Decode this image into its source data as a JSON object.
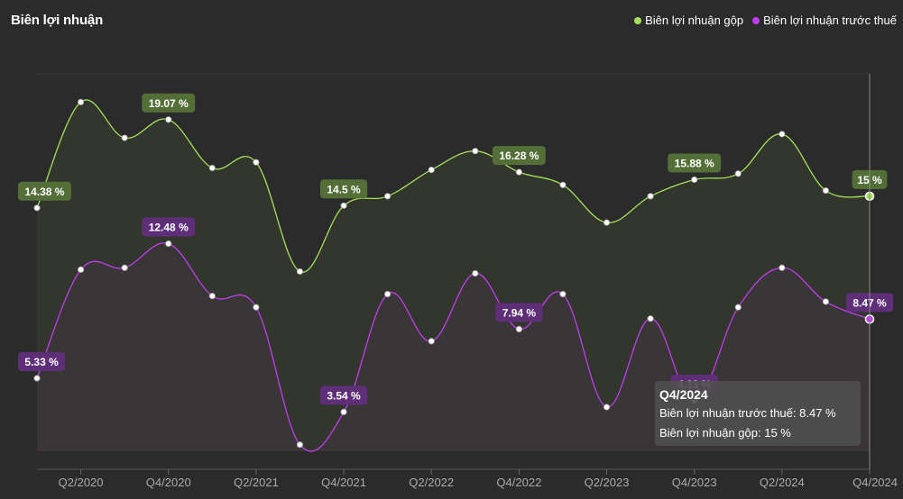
{
  "title": "Biên lợi nhuận",
  "legend": [
    {
      "name": "Biên lợi nhuận gộp",
      "color": "#a3e05a"
    },
    {
      "name": "Biên lợi nhuận trước thuế",
      "color": "#c03cf0"
    }
  ],
  "tooltip": {
    "title": "Q4/2024",
    "row1_label": "Biên lợi nhuận trước thuế: ",
    "row1_value": "8.47 %",
    "row2_label": "Biên lợi nhuận gộp: ",
    "row2_value": "15 %"
  },
  "chart_data": {
    "type": "line",
    "categories": [
      "Q1/2020",
      "Q2/2020",
      "Q3/2020",
      "Q4/2020",
      "Q1/2021",
      "Q2/2021",
      "Q3/2021",
      "Q4/2021",
      "Q1/2022",
      "Q2/2022",
      "Q3/2022",
      "Q4/2022",
      "Q1/2023",
      "Q2/2023",
      "Q3/2023",
      "Q4/2023",
      "Q1/2024",
      "Q2/2024",
      "Q3/2024",
      "Q4/2024"
    ],
    "tick_labels": [
      "Q2/2020",
      "Q4/2020",
      "Q2/2021",
      "Q4/2021",
      "Q2/2022",
      "Q4/2022",
      "Q2/2023",
      "Q4/2023",
      "Q2/2024",
      "Q4/2024"
    ],
    "tick_indices": [
      1,
      3,
      5,
      7,
      9,
      11,
      13,
      15,
      17,
      19
    ],
    "ylim": [
      1.5,
      21.5
    ],
    "series": [
      {
        "name": "Biên lợi nhuận gộp",
        "color": "#a3e05a",
        "label_bg": "#536e37",
        "values": [
          14.38,
          20.0,
          18.1,
          19.07,
          16.5,
          16.8,
          11.0,
          14.5,
          15.0,
          16.4,
          17.4,
          16.28,
          15.6,
          13.6,
          15.0,
          15.88,
          16.2,
          18.3,
          15.3,
          15.0
        ],
        "labels": {
          "0": "14.38 %",
          "3": "19.07 %",
          "7": "14.5 %",
          "11": "16.28 %",
          "15": "15.88 %",
          "19": "15 %"
        }
      },
      {
        "name": "Biên lợi nhuận trước thuế",
        "color": "#c03cf0",
        "label_bg": "#5e2f78",
        "values": [
          5.33,
          11.1,
          11.2,
          12.48,
          9.7,
          9.1,
          1.8,
          3.54,
          9.8,
          7.3,
          10.9,
          7.94,
          9.8,
          3.8,
          8.5,
          4.13,
          9.1,
          11.2,
          9.4,
          8.47
        ],
        "labels": {
          "0": "5.33 %",
          "3": "12.48 %",
          "7": "3.54 %",
          "11": "7.94 %",
          "15": "4.13 %",
          "19": "8.47 %"
        }
      }
    ],
    "grid": "horizontal",
    "legend_position": "top-right",
    "highlight_index": 19
  }
}
